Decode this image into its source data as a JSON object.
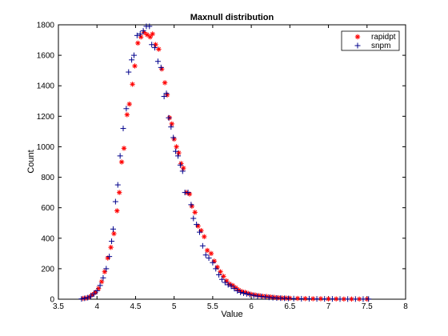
{
  "chart_data": {
    "type": "scatter",
    "title": "Maxnull distribution",
    "xlabel": "Value",
    "ylabel": "Count",
    "xlim": [
      3.5,
      8
    ],
    "ylim": [
      0,
      1800
    ],
    "xticks": [
      "3.5",
      "4",
      "4.5",
      "5",
      "5.5",
      "6",
      "6.5",
      "7",
      "7.5",
      "8"
    ],
    "yticks": [
      "0",
      "200",
      "400",
      "600",
      "800",
      "1000",
      "1200",
      "1400",
      "1600",
      "1800"
    ],
    "grid": false,
    "legend_position": "top-right",
    "series": [
      {
        "name": "rapidpt",
        "marker": "asterisk",
        "color": "#ff0000",
        "points": [
          [
            3.82,
            5
          ],
          [
            3.86,
            8
          ],
          [
            3.9,
            14
          ],
          [
            3.94,
            30
          ],
          [
            3.98,
            45
          ],
          [
            4.02,
            70
          ],
          [
            4.06,
            115
          ],
          [
            4.1,
            180
          ],
          [
            4.14,
            270
          ],
          [
            4.18,
            340
          ],
          [
            4.22,
            430
          ],
          [
            4.26,
            580
          ],
          [
            4.29,
            700
          ],
          [
            4.32,
            900
          ],
          [
            4.35,
            990
          ],
          [
            4.39,
            1210
          ],
          [
            4.42,
            1280
          ],
          [
            4.46,
            1410
          ],
          [
            4.49,
            1530
          ],
          [
            4.53,
            1680
          ],
          [
            4.57,
            1720
          ],
          [
            4.61,
            1750
          ],
          [
            4.65,
            1735
          ],
          [
            4.69,
            1720
          ],
          [
            4.72,
            1740
          ],
          [
            4.76,
            1670
          ],
          [
            4.8,
            1640
          ],
          [
            4.84,
            1510
          ],
          [
            4.88,
            1420
          ],
          [
            4.91,
            1340
          ],
          [
            4.94,
            1190
          ],
          [
            4.97,
            1150
          ],
          [
            5.0,
            1050
          ],
          [
            5.03,
            1000
          ],
          [
            5.06,
            960
          ],
          [
            5.09,
            890
          ],
          [
            5.12,
            860
          ],
          [
            5.16,
            700
          ],
          [
            5.2,
            690
          ],
          [
            5.23,
            610
          ],
          [
            5.27,
            570
          ],
          [
            5.31,
            480
          ],
          [
            5.35,
            450
          ],
          [
            5.39,
            410
          ],
          [
            5.43,
            320
          ],
          [
            5.48,
            300
          ],
          [
            5.52,
            250
          ],
          [
            5.56,
            210
          ],
          [
            5.6,
            180
          ],
          [
            5.64,
            150
          ],
          [
            5.68,
            120
          ],
          [
            5.72,
            100
          ],
          [
            5.76,
            90
          ],
          [
            5.8,
            75
          ],
          [
            5.84,
            60
          ],
          [
            5.88,
            50
          ],
          [
            5.92,
            45
          ],
          [
            5.96,
            38
          ],
          [
            6.0,
            32
          ],
          [
            6.05,
            28
          ],
          [
            6.1,
            24
          ],
          [
            6.15,
            20
          ],
          [
            6.2,
            18
          ],
          [
            6.25,
            15
          ],
          [
            6.3,
            12
          ],
          [
            6.35,
            10
          ],
          [
            6.4,
            8
          ],
          [
            6.45,
            7
          ],
          [
            6.5,
            6
          ],
          [
            6.6,
            5
          ],
          [
            6.7,
            4
          ],
          [
            6.8,
            3
          ],
          [
            6.9,
            3
          ],
          [
            7.0,
            2
          ],
          [
            7.1,
            2
          ],
          [
            7.2,
            1
          ],
          [
            7.3,
            1
          ],
          [
            7.4,
            1
          ],
          [
            7.5,
            1
          ]
        ]
      },
      {
        "name": "snpm",
        "marker": "plus",
        "color": "#00008b",
        "points": [
          [
            3.8,
            2
          ],
          [
            3.84,
            6
          ],
          [
            3.88,
            10
          ],
          [
            3.92,
            20
          ],
          [
            3.96,
            35
          ],
          [
            4.0,
            55
          ],
          [
            4.04,
            90
          ],
          [
            4.08,
            140
          ],
          [
            4.12,
            200
          ],
          [
            4.16,
            280
          ],
          [
            4.19,
            380
          ],
          [
            4.21,
            460
          ],
          [
            4.24,
            640
          ],
          [
            4.27,
            750
          ],
          [
            4.3,
            940
          ],
          [
            4.34,
            1120
          ],
          [
            4.38,
            1250
          ],
          [
            4.41,
            1490
          ],
          [
            4.45,
            1570
          ],
          [
            4.48,
            1600
          ],
          [
            4.52,
            1730
          ],
          [
            4.56,
            1740
          ],
          [
            4.6,
            1760
          ],
          [
            4.64,
            1790
          ],
          [
            4.68,
            1790
          ],
          [
            4.71,
            1670
          ],
          [
            4.75,
            1650
          ],
          [
            4.79,
            1560
          ],
          [
            4.83,
            1520
          ],
          [
            4.87,
            1330
          ],
          [
            4.9,
            1350
          ],
          [
            4.93,
            1190
          ],
          [
            4.96,
            1130
          ],
          [
            4.99,
            1060
          ],
          [
            5.02,
            970
          ],
          [
            5.05,
            940
          ],
          [
            5.08,
            880
          ],
          [
            5.11,
            840
          ],
          [
            5.14,
            700
          ],
          [
            5.18,
            700
          ],
          [
            5.22,
            620
          ],
          [
            5.25,
            530
          ],
          [
            5.29,
            490
          ],
          [
            5.33,
            440
          ],
          [
            5.37,
            350
          ],
          [
            5.41,
            290
          ],
          [
            5.45,
            270
          ],
          [
            5.5,
            240
          ],
          [
            5.54,
            200
          ],
          [
            5.58,
            160
          ],
          [
            5.62,
            130
          ],
          [
            5.66,
            110
          ],
          [
            5.7,
            95
          ],
          [
            5.74,
            85
          ],
          [
            5.78,
            70
          ],
          [
            5.82,
            55
          ],
          [
            5.86,
            45
          ],
          [
            5.9,
            40
          ],
          [
            5.94,
            35
          ],
          [
            5.98,
            30
          ],
          [
            6.03,
            25
          ],
          [
            6.08,
            20
          ],
          [
            6.13,
            18
          ],
          [
            6.18,
            15
          ],
          [
            6.23,
            12
          ],
          [
            6.28,
            10
          ],
          [
            6.33,
            8
          ],
          [
            6.38,
            7
          ],
          [
            6.43,
            6
          ],
          [
            6.48,
            5
          ],
          [
            6.55,
            4
          ],
          [
            6.65,
            3
          ],
          [
            6.75,
            3
          ],
          [
            6.85,
            2
          ],
          [
            6.95,
            2
          ],
          [
            7.05,
            2
          ],
          [
            7.15,
            1
          ],
          [
            7.25,
            1
          ],
          [
            7.35,
            1
          ],
          [
            7.45,
            1
          ],
          [
            7.52,
            1
          ]
        ]
      }
    ]
  }
}
